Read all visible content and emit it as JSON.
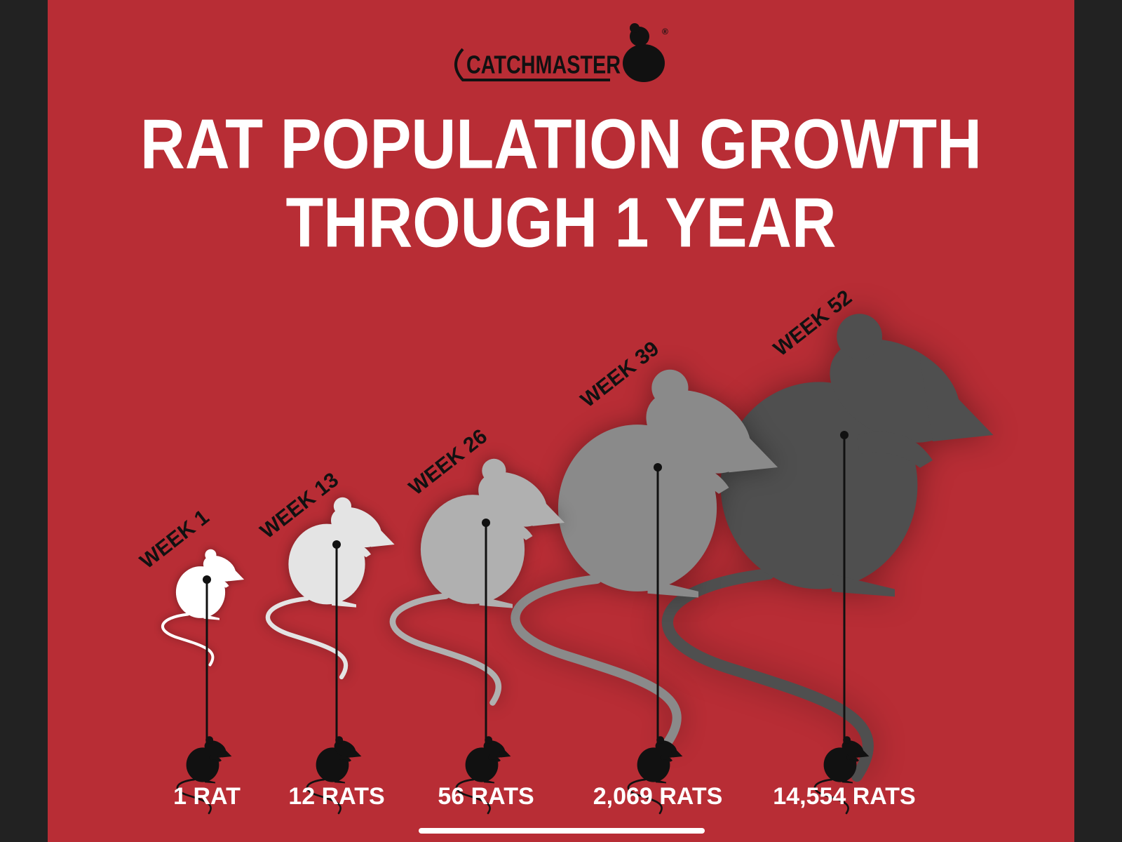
{
  "logo": {
    "name": "CATCHMASTER",
    "mark": "®"
  },
  "title": [
    "RAT POPULATION GROWTH",
    "THROUGH 1 YEAR"
  ],
  "items": [
    {
      "week": "WEEK 1",
      "count": "1 RAT"
    },
    {
      "week": "WEEK 13",
      "count": "12 RATS"
    },
    {
      "week": "WEEK 26",
      "count": "56 RATS"
    },
    {
      "week": "WEEK 39",
      "count": "2,069 RATS"
    },
    {
      "week": "WEEK 52",
      "count": "14,554 RATS"
    }
  ]
}
